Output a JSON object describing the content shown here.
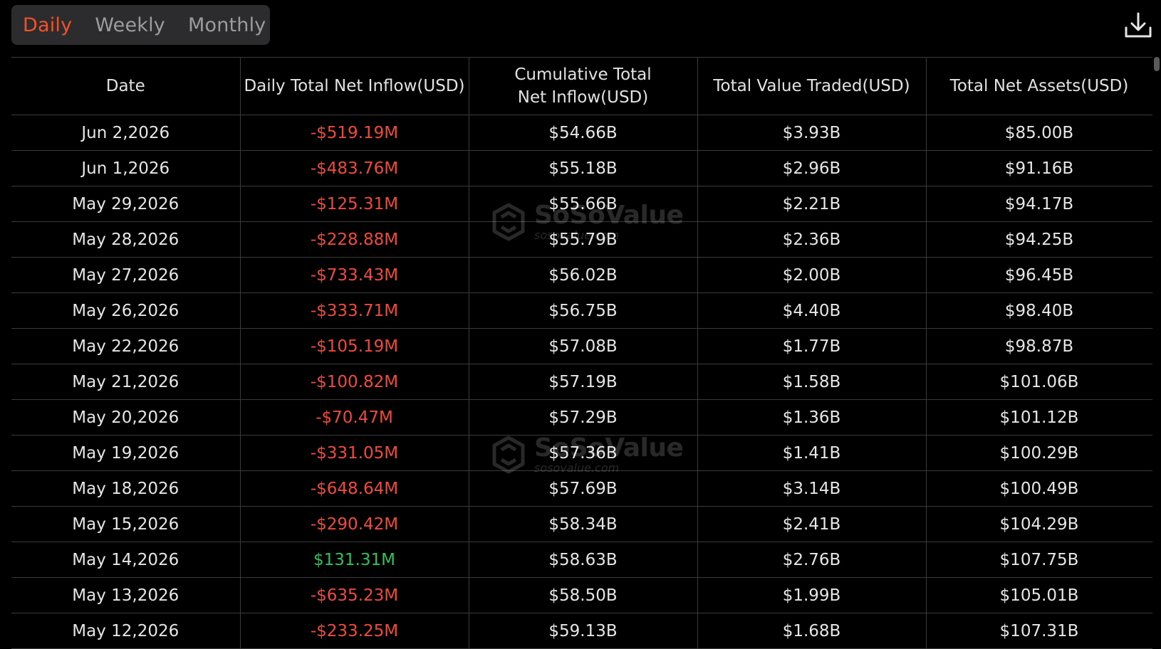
{
  "tabs": [
    {
      "label": "Daily",
      "active": true
    },
    {
      "label": "Weekly",
      "active": false
    },
    {
      "label": "Monthly",
      "active": false
    }
  ],
  "download_icon": "download-icon",
  "table": {
    "headers": [
      "Date",
      "Daily Total Net Inflow(USD)",
      "Cumulative Total Net Inflow(USD)",
      "Total Value Traded(USD)",
      "Total Net Assets(USD)"
    ],
    "rows": [
      {
        "date": "Jun 2,2026",
        "daily_inflow": "-$519.19M",
        "cumulative": "$54.66B",
        "traded": "$3.93B",
        "assets": "$85.00B"
      },
      {
        "date": "Jun 1,2026",
        "daily_inflow": "-$483.76M",
        "cumulative": "$55.18B",
        "traded": "$2.96B",
        "assets": "$91.16B"
      },
      {
        "date": "May 29,2026",
        "daily_inflow": "-$125.31M",
        "cumulative": "$55.66B",
        "traded": "$2.21B",
        "assets": "$94.17B"
      },
      {
        "date": "May 28,2026",
        "daily_inflow": "-$228.88M",
        "cumulative": "$55.79B",
        "traded": "$2.36B",
        "assets": "$94.25B"
      },
      {
        "date": "May 27,2026",
        "daily_inflow": "-$733.43M",
        "cumulative": "$56.02B",
        "traded": "$2.00B",
        "assets": "$96.45B"
      },
      {
        "date": "May 26,2026",
        "daily_inflow": "-$333.71M",
        "cumulative": "$56.75B",
        "traded": "$4.40B",
        "assets": "$98.40B"
      },
      {
        "date": "May 22,2026",
        "daily_inflow": "-$105.19M",
        "cumulative": "$57.08B",
        "traded": "$1.77B",
        "assets": "$98.87B"
      },
      {
        "date": "May 21,2026",
        "daily_inflow": "-$100.82M",
        "cumulative": "$57.19B",
        "traded": "$1.58B",
        "assets": "$101.06B"
      },
      {
        "date": "May 20,2026",
        "daily_inflow": "-$70.47M",
        "cumulative": "$57.29B",
        "traded": "$1.36B",
        "assets": "$101.12B"
      },
      {
        "date": "May 19,2026",
        "daily_inflow": "-$331.05M",
        "cumulative": "$57.36B",
        "traded": "$1.41B",
        "assets": "$100.29B"
      },
      {
        "date": "May 18,2026",
        "daily_inflow": "-$648.64M",
        "cumulative": "$57.69B",
        "traded": "$3.14B",
        "assets": "$100.49B"
      },
      {
        "date": "May 15,2026",
        "daily_inflow": "-$290.42M",
        "cumulative": "$58.34B",
        "traded": "$2.41B",
        "assets": "$104.29B"
      },
      {
        "date": "May 14,2026",
        "daily_inflow": "$131.31M",
        "cumulative": "$58.63B",
        "traded": "$2.76B",
        "assets": "$107.75B"
      },
      {
        "date": "May 13,2026",
        "daily_inflow": "-$635.23M",
        "cumulative": "$58.50B",
        "traded": "$1.99B",
        "assets": "$105.01B"
      },
      {
        "date": "May 12,2026",
        "daily_inflow": "-$233.25M",
        "cumulative": "$59.13B",
        "traded": "$1.68B",
        "assets": "$107.31B"
      }
    ]
  },
  "watermark": {
    "brand": "SoSoValue",
    "site": "sosovalue.com",
    "icon": "sosovalue-logo-icon"
  },
  "colors": {
    "accent": "#f0522a",
    "negative": "#f04a3a",
    "positive": "#2fc25b",
    "background": "#000000",
    "tab_bg": "#2c2c2e"
  }
}
